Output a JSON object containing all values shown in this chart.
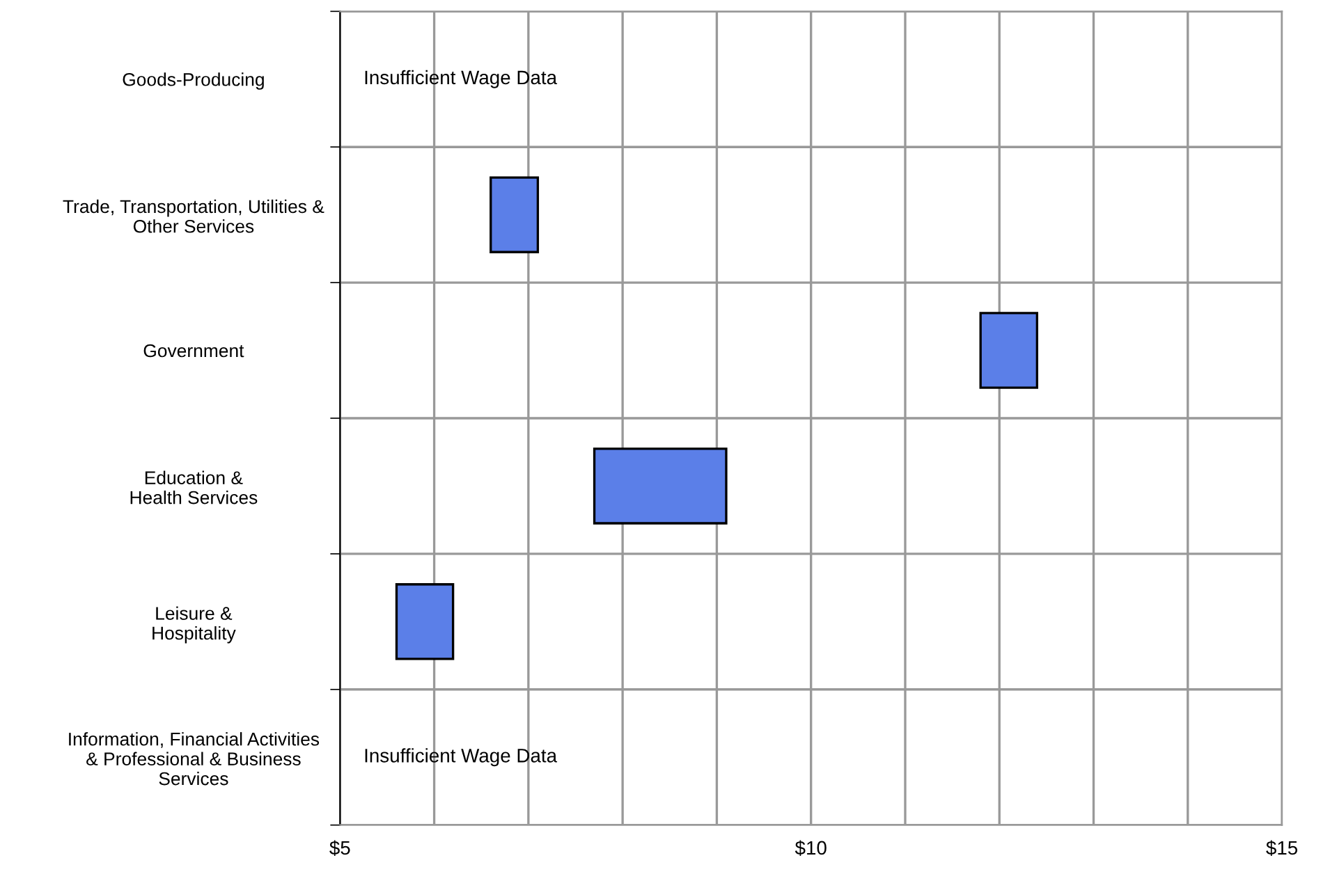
{
  "chart_data": {
    "type": "bar",
    "orientation": "horizontal",
    "categories": [
      "Goods-Producing",
      "Trade, Transportation, Utilities &\nOther Services",
      "Government",
      "Education &\nHealth Services",
      "Leisure &\nHospitality",
      "Information, Financial Activities\n& Professional & Business\nServices"
    ],
    "base": [
      null,
      6.6,
      11.8,
      7.7,
      5.6,
      null
    ],
    "values": [
      null,
      0.5,
      0.6,
      1.4,
      0.6,
      null
    ],
    "color": "#5b7fe8",
    "xlim": [
      5,
      15
    ],
    "xticks": [
      {
        "value": 5,
        "label": "$5"
      },
      {
        "value": 6,
        "label": null
      },
      {
        "value": 7,
        "label": null
      },
      {
        "value": 8,
        "label": null
      },
      {
        "value": 9,
        "label": null
      },
      {
        "value": 10,
        "label": "$10"
      },
      {
        "value": 11,
        "label": null
      },
      {
        "value": 12,
        "label": null
      },
      {
        "value": 13,
        "label": null
      },
      {
        "value": 14,
        "label": null
      },
      {
        "value": 15,
        "label": "$15"
      }
    ],
    "grid": true,
    "annotations": [
      "Insufficient Wage Data",
      "Insufficient Wage Data"
    ]
  }
}
